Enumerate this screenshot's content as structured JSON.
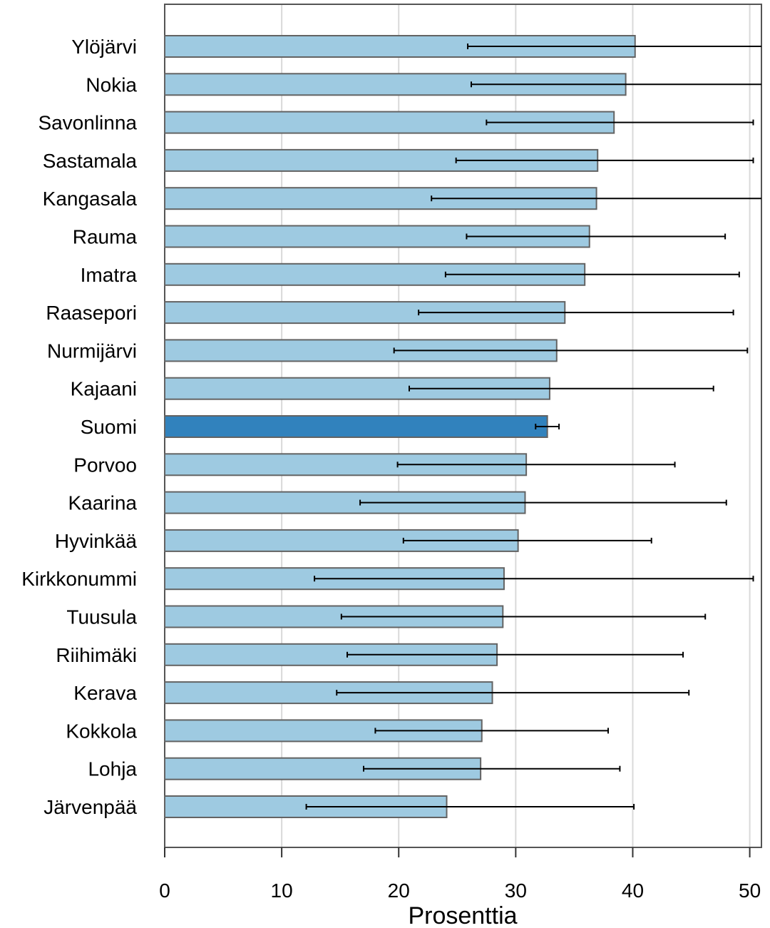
{
  "chart_data": {
    "type": "bar",
    "orientation": "horizontal",
    "xlabel": "Prosenttia",
    "xlim": [
      0,
      51
    ],
    "xticks": [
      0,
      10,
      20,
      30,
      40,
      50
    ],
    "grid": true,
    "colors": {
      "bar": "#9ecae1",
      "highlight": "#3182bd",
      "edge": "#636363",
      "grid": "#d9d9d9",
      "error": "#000000"
    },
    "highlight": "Suomi",
    "categories": [
      "Ylöjärvi",
      "Nokia",
      "Savonlinna",
      "Sastamala",
      "Kangasala",
      "Rauma",
      "Imatra",
      "Raasepori",
      "Nurmijärvi",
      "Kajaani",
      "Suomi",
      "Porvoo",
      "Kaarina",
      "Hyvinkää",
      "Kirkkonummi",
      "Tuusula",
      "Riihimäki",
      "Kerava",
      "Kokkola",
      "Lohja",
      "Järvenpää"
    ],
    "values": [
      40.2,
      39.4,
      38.4,
      37.0,
      36.9,
      36.3,
      35.9,
      34.2,
      33.5,
      32.9,
      32.7,
      30.9,
      30.8,
      30.2,
      29.0,
      28.9,
      28.4,
      28.0,
      27.1,
      27.0,
      24.1
    ],
    "error_low": [
      25.9,
      26.2,
      27.5,
      24.9,
      22.8,
      25.8,
      24.0,
      21.7,
      19.6,
      20.9,
      31.7,
      19.9,
      16.7,
      20.4,
      12.8,
      15.1,
      15.6,
      14.7,
      18.0,
      17.0,
      12.1
    ],
    "error_high": [
      52.0,
      52.0,
      50.3,
      50.3,
      52.0,
      47.9,
      49.1,
      48.6,
      49.8,
      46.9,
      33.7,
      43.6,
      48.0,
      41.6,
      50.3,
      46.2,
      44.3,
      44.8,
      37.9,
      38.9,
      40.1
    ]
  }
}
